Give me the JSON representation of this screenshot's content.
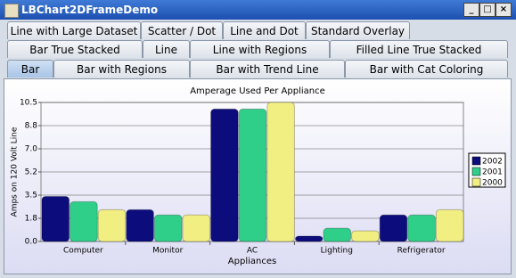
{
  "window": {
    "title": "LBChart2DFrameDemo"
  },
  "tabs": {
    "rows": [
      [
        "Line with Large Dataset",
        "Scatter / Dot",
        "Line and Dot",
        "Standard Overlay"
      ],
      [
        "Bar True Stacked",
        "Line",
        "Line with Regions",
        "Filled Line True Stacked"
      ],
      [
        "Bar",
        "Bar with Regions",
        "Bar with Trend Line",
        "Bar with Cat Coloring"
      ]
    ]
  },
  "chart_data": {
    "type": "bar",
    "title": "Amperage Used Per Appliance",
    "x_label": "Appliances",
    "y_label": "Amps on 120 Volt Line",
    "categories": [
      "Computer",
      "Monitor",
      "AC",
      "Lighting",
      "Refrigerator"
    ],
    "series": [
      {
        "name": "2002",
        "color": "#0c0c7c",
        "values": [
          3.4,
          2.4,
          10.0,
          0.4,
          2.0
        ]
      },
      {
        "name": "2001",
        "color": "#2fcf8a",
        "values": [
          3.0,
          2.0,
          10.0,
          1.0,
          2.0
        ]
      },
      {
        "name": "2000",
        "color": "#f2ef82",
        "values": [
          2.4,
          2.0,
          10.5,
          0.8,
          2.4
        ]
      }
    ],
    "ylim": [
      0,
      10.5
    ],
    "yticks": [
      {
        "value": 0,
        "label": "0.0"
      },
      {
        "value": 1.75,
        "label": "1.8"
      },
      3.5,
      {
        "value": 5.25,
        "label": "5.2"
      },
      {
        "value": 7,
        "label": "7.0"
      },
      {
        "value": 8.75,
        "label": "8.8"
      },
      10.5
    ],
    "grid": true,
    "legend": "right"
  }
}
